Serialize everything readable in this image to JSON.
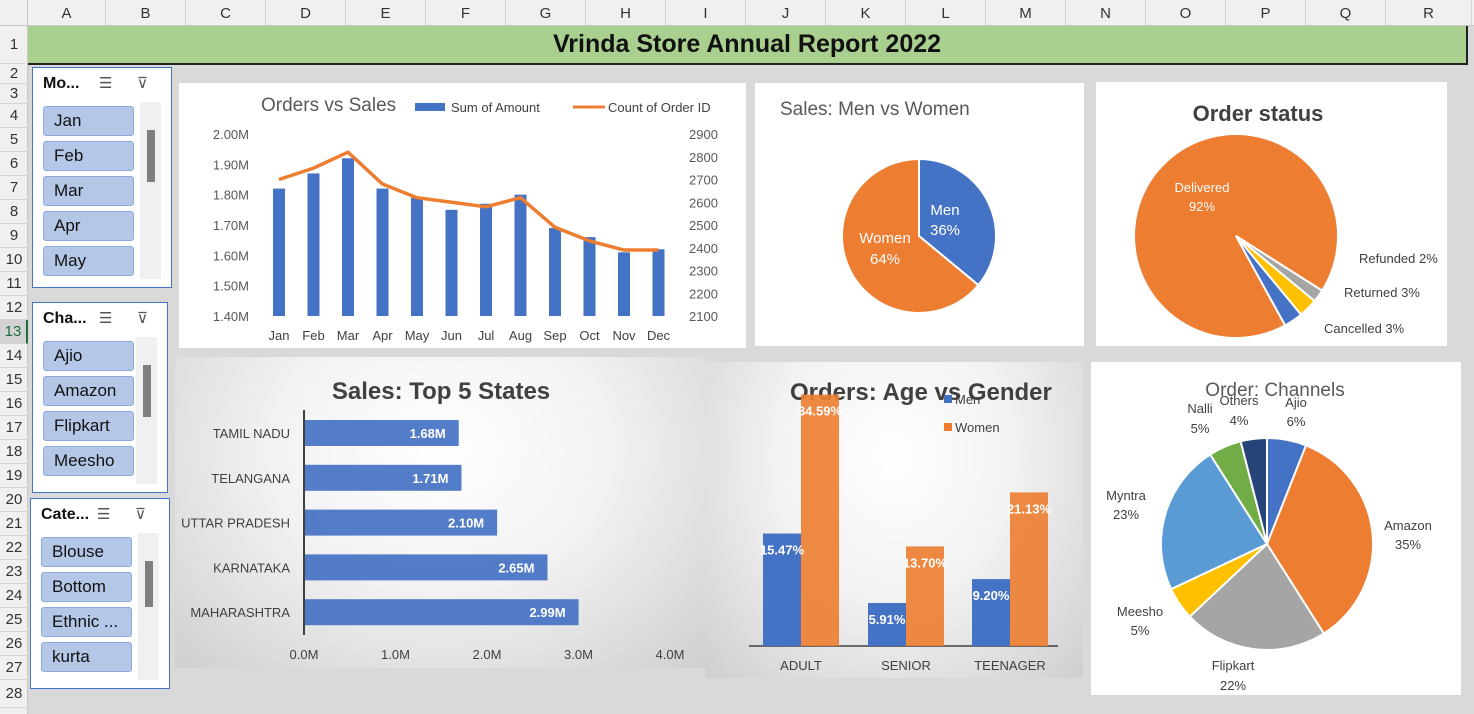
{
  "sheet": {
    "columns": [
      "A",
      "B",
      "C",
      "D",
      "E",
      "F",
      "G",
      "H",
      "I",
      "J",
      "K",
      "L",
      "M",
      "N",
      "O",
      "P",
      "Q",
      "R"
    ],
    "rows": [
      "1",
      "2",
      "3",
      "4",
      "5",
      "6",
      "7",
      "8",
      "9",
      "10",
      "11",
      "12",
      "13",
      "14",
      "15",
      "16",
      "17",
      "18",
      "19",
      "20",
      "21",
      "22",
      "23",
      "24",
      "25",
      "26",
      "27",
      "28"
    ],
    "selected_row": "13"
  },
  "report_title": "Vrinda Store Annual Report 2022",
  "slicers": [
    {
      "title": "Mo...",
      "items": [
        "Jan",
        "Feb",
        "Mar",
        "Apr",
        "May"
      ]
    },
    {
      "title": "Cha...",
      "items": [
        "Ajio",
        "Amazon",
        "Flipkart",
        "Meesho"
      ]
    },
    {
      "title": "Cate...",
      "items": [
        "Blouse",
        "Bottom",
        "Ethnic ...",
        "kurta"
      ]
    }
  ],
  "icons": {
    "multiselect": "multi-select-icon",
    "clear_filter": "clear-filter-icon"
  },
  "colors": {
    "blue": "#4472c4",
    "orange": "#ed7d31",
    "gray": "#a5a5a5",
    "yellow": "#ffc000",
    "lightblue": "#5b9bd5",
    "green": "#70ad47",
    "navy": "#264478"
  },
  "chart_data": [
    {
      "id": "orders_vs_sales",
      "type": "bar",
      "title": "Orders vs Sales",
      "categories": [
        "Jan",
        "Feb",
        "Mar",
        "Apr",
        "May",
        "Jun",
        "Jul",
        "Aug",
        "Sep",
        "Oct",
        "Nov",
        "Dec"
      ],
      "series": [
        {
          "name": "Sum of Amount",
          "type": "bar",
          "axis": "left",
          "values": [
            1.82,
            1.87,
            1.92,
            1.82,
            1.79,
            1.75,
            1.77,
            1.8,
            1.69,
            1.66,
            1.61,
            1.62
          ]
        },
        {
          "name": "Count of Order ID",
          "type": "line",
          "axis": "right",
          "values": [
            2700,
            2750,
            2820,
            2680,
            2620,
            2600,
            2580,
            2620,
            2490,
            2430,
            2390,
            2390
          ]
        }
      ],
      "y_left": {
        "ticks": [
          "2.00M",
          "1.90M",
          "1.80M",
          "1.70M",
          "1.60M",
          "1.50M",
          "1.40M"
        ],
        "range": [
          1.4,
          2.0
        ]
      },
      "y_right": {
        "ticks": [
          "2900",
          "2800",
          "2700",
          "2600",
          "2500",
          "2400",
          "2300",
          "2200",
          "2100"
        ],
        "range": [
          2100,
          2900
        ]
      },
      "legend": "top-right"
    },
    {
      "id": "sales_men_women",
      "type": "pie",
      "title": "Sales: Men vs Women",
      "slices": [
        {
          "label": "Men",
          "pct_label": "36%",
          "value": 36
        },
        {
          "label": "Women",
          "pct_label": "64%",
          "value": 64
        }
      ]
    },
    {
      "id": "order_status",
      "type": "pie",
      "title": "Order status",
      "slices": [
        {
          "label": "Delivered",
          "pct_label": "92%",
          "value": 92
        },
        {
          "label": "Refunded",
          "pct_label": "2%",
          "value": 2
        },
        {
          "label": "Returned",
          "pct_label": "3%",
          "value": 3
        },
        {
          "label": "Cancelled",
          "pct_label": "3%",
          "value": 3
        }
      ]
    },
    {
      "id": "top5_states",
      "type": "bar",
      "orientation": "horizontal",
      "title": "Sales: Top 5 States",
      "categories": [
        "TAMIL NADU",
        "TELANGANA",
        "UTTAR PRADESH",
        "KARNATAKA",
        "MAHARASHTRA"
      ],
      "values": [
        1.68,
        1.71,
        2.1,
        2.65,
        2.99
      ],
      "value_labels": [
        "1.68M",
        "1.71M",
        "2.10M",
        "2.65M",
        "2.99M"
      ],
      "x_ticks": [
        "0.0M",
        "1.0M",
        "2.0M",
        "3.0M",
        "4.0M"
      ],
      "xlim": [
        0,
        4
      ]
    },
    {
      "id": "age_vs_gender",
      "type": "bar",
      "title": "Orders: Age vs Gender",
      "categories": [
        "ADULT",
        "SENIOR",
        "TEENAGER"
      ],
      "series": [
        {
          "name": "Men",
          "values": [
            15.47,
            5.91,
            9.2
          ],
          "labels": [
            "15.47%",
            "5.91%",
            "9.20%"
          ]
        },
        {
          "name": "Women",
          "values": [
            34.59,
            13.7,
            21.13
          ],
          "labels": [
            "34.59%",
            "13.70%",
            "21.13%"
          ]
        }
      ],
      "legend": "top-right"
    },
    {
      "id": "order_channels",
      "type": "pie",
      "title": "Order: Channels",
      "slices": [
        {
          "label": "Ajio",
          "pct_label": "6%",
          "value": 6
        },
        {
          "label": "Amazon",
          "pct_label": "35%",
          "value": 35
        },
        {
          "label": "Flipkart",
          "pct_label": "22%",
          "value": 22
        },
        {
          "label": "Meesho",
          "pct_label": "5%",
          "value": 5
        },
        {
          "label": "Myntra",
          "pct_label": "23%",
          "value": 23
        },
        {
          "label": "Nalli",
          "pct_label": "5%",
          "value": 5
        },
        {
          "label": "Others",
          "pct_label": "4%",
          "value": 4
        }
      ]
    }
  ]
}
